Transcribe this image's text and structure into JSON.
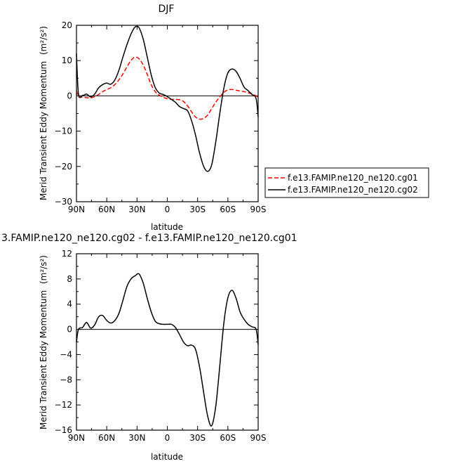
{
  "chart_data": [
    {
      "type": "line",
      "title": "DJF",
      "xlabel": "latitude",
      "ylabel": "Merid Transient Eddy Momentum",
      "ylabel_unit": "(m²/s²)",
      "x_ticks": [
        90,
        60,
        30,
        0,
        -30,
        -60,
        -90
      ],
      "x_tick_labels": [
        "90N",
        "60N",
        "30N",
        "0",
        "30S",
        "60S",
        "90S"
      ],
      "xlim": [
        90,
        -90
      ],
      "ylim": [
        -30,
        20
      ],
      "y_ticks": [
        20,
        10,
        0,
        -10,
        -20,
        -30
      ],
      "y_tick_labels": [
        "20",
        "10",
        "0",
        "−10",
        "−20",
        "−30"
      ],
      "legend_position": "right",
      "series": [
        {
          "name": "f.e13.FAMIP.ne120_ne120.cg01",
          "color": "#ff0000",
          "dash": true,
          "x": [
            90,
            88,
            84,
            80,
            76,
            72,
            68,
            64,
            60,
            56,
            52,
            48,
            44,
            40,
            36,
            32,
            28,
            24,
            20,
            16,
            12,
            8,
            4,
            0,
            -4,
            -8,
            -12,
            -16,
            -20,
            -24,
            -28,
            -32,
            -36,
            -40,
            -44,
            -48,
            -52,
            -56,
            -60,
            -64,
            -68,
            -72,
            -76,
            -80,
            -84,
            -88,
            -90
          ],
          "y": [
            1.5,
            -0.2,
            -0.4,
            -0.5,
            -0.6,
            -0.2,
            0.4,
            1.2,
            1.8,
            2.3,
            3.2,
            4.5,
            6.2,
            8.2,
            10.0,
            11.0,
            10.5,
            8.8,
            6.2,
            3.2,
            1.2,
            0.2,
            -0.4,
            -0.8,
            -1.0,
            -1.0,
            -1.1,
            -1.6,
            -2.8,
            -4.5,
            -6.0,
            -6.6,
            -6.4,
            -5.4,
            -3.6,
            -1.8,
            -0.3,
            1.0,
            1.7,
            1.8,
            1.6,
            1.4,
            1.2,
            0.9,
            0.5,
            0.0,
            -0.6
          ]
        },
        {
          "name": "f.e13.FAMIP.ne120_ne120.cg02",
          "color": "#000000",
          "dash": false,
          "x": [
            90,
            88,
            84,
            80,
            76,
            72,
            68,
            64,
            60,
            56,
            52,
            48,
            44,
            40,
            36,
            32,
            28,
            24,
            20,
            16,
            12,
            8,
            4,
            0,
            -4,
            -8,
            -12,
            -16,
            -20,
            -24,
            -28,
            -32,
            -36,
            -40,
            -44,
            -48,
            -52,
            -56,
            -60,
            -64,
            -68,
            -72,
            -76,
            -80,
            -84,
            -88,
            -90
          ],
          "y": [
            12.0,
            0.5,
            0.1,
            0.5,
            -0.3,
            0.5,
            2.3,
            3.2,
            3.6,
            3.3,
            4.5,
            7.2,
            11.0,
            14.5,
            17.5,
            19.5,
            19.3,
            16.2,
            11.2,
            6.0,
            2.4,
            0.8,
            0.4,
            -0.2,
            -1.0,
            -1.8,
            -3.0,
            -3.6,
            -4.2,
            -7.0,
            -11.2,
            -16.2,
            -20.0,
            -21.4,
            -19.5,
            -13.0,
            -5.0,
            2.2,
            6.5,
            7.6,
            7.0,
            5.0,
            2.5,
            1.5,
            0.4,
            -0.8,
            -6.0
          ]
        }
      ]
    },
    {
      "type": "line",
      "title": "3.FAMIP.ne120_ne120.cg02 - f.e13.FAMIP.ne120_ne120.cg01",
      "xlabel": "latitude",
      "ylabel": "Merid Transient Eddy Momentum",
      "ylabel_unit": "(m²/s²)",
      "x_ticks": [
        90,
        60,
        30,
        0,
        -30,
        -60,
        -90
      ],
      "x_tick_labels": [
        "90N",
        "60N",
        "30N",
        "0",
        "30S",
        "60S",
        "90S"
      ],
      "xlim": [
        90,
        -90
      ],
      "ylim": [
        -16,
        12
      ],
      "y_ticks": [
        12,
        8,
        4,
        0,
        -4,
        -8,
        -12,
        -16
      ],
      "y_tick_labels": [
        "12",
        "8",
        "4",
        "0",
        "−4",
        "−8",
        "−12",
        "−16"
      ],
      "series": [
        {
          "color": "#000000",
          "dash": false,
          "x": [
            90,
            88,
            84,
            80,
            76,
            72,
            68,
            64,
            60,
            56,
            52,
            48,
            44,
            40,
            36,
            32,
            28,
            24,
            20,
            16,
            12,
            8,
            4,
            0,
            -4,
            -8,
            -12,
            -16,
            -20,
            -24,
            -28,
            -32,
            -36,
            -40,
            -44,
            -48,
            -52,
            -56,
            -60,
            -64,
            -68,
            -72,
            -76,
            -80,
            -84,
            -88,
            -90
          ],
          "y": [
            -2.0,
            0.0,
            0.3,
            1.1,
            0.2,
            0.7,
            2.0,
            2.2,
            1.4,
            1.0,
            1.4,
            2.5,
            4.6,
            6.8,
            8.0,
            8.5,
            8.8,
            7.4,
            5.0,
            2.8,
            1.3,
            0.9,
            0.8,
            0.8,
            0.8,
            0.3,
            -0.8,
            -2.0,
            -2.6,
            -2.5,
            -3.2,
            -6.0,
            -10.0,
            -13.8,
            -15.3,
            -12.2,
            -5.8,
            1.0,
            5.0,
            6.2,
            5.0,
            2.8,
            1.6,
            0.8,
            0.4,
            0.0,
            -2.4
          ]
        }
      ]
    }
  ],
  "legend": {
    "entries": [
      {
        "label": "f.e13.FAMIP.ne120_ne120.cg01",
        "color": "#ff0000",
        "dash": true
      },
      {
        "label": "f.e13.FAMIP.ne120_ne120.cg02",
        "color": "#000000",
        "dash": false
      }
    ]
  }
}
